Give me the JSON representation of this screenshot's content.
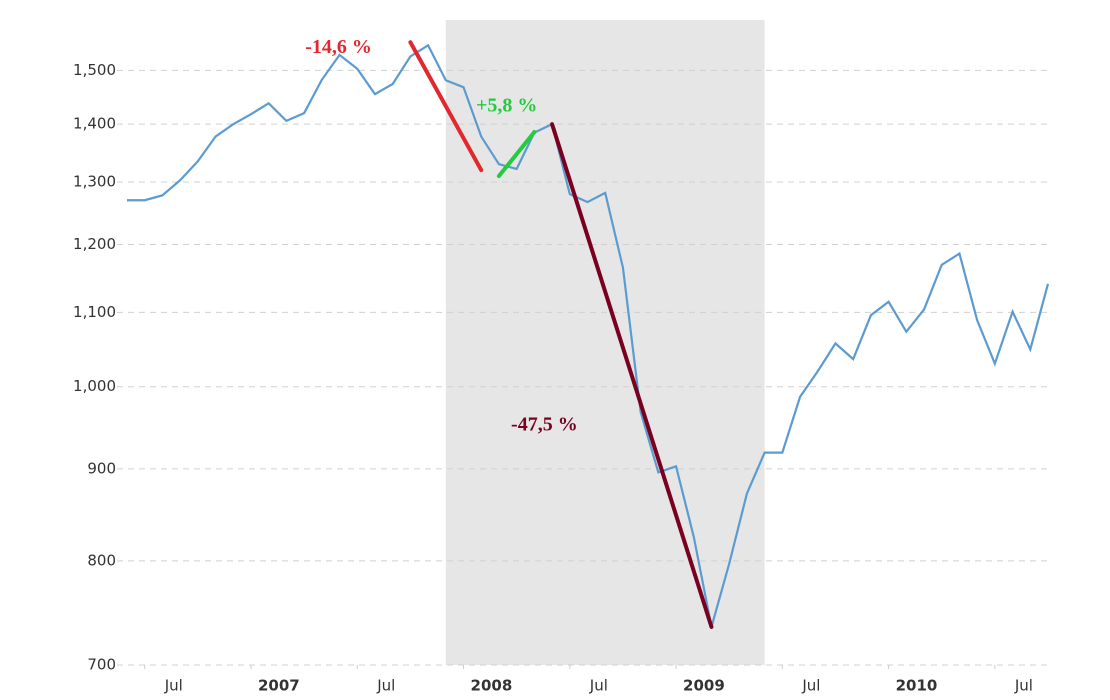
{
  "chart_data": {
    "type": "line",
    "x": [
      "2006-06",
      "2006-07",
      "2006-08",
      "2006-09",
      "2006-10",
      "2006-11",
      "2006-12",
      "2007-01",
      "2007-02",
      "2007-03",
      "2007-04",
      "2007-05",
      "2007-06",
      "2007-07",
      "2007-08",
      "2007-09",
      "2007-10",
      "2007-11",
      "2007-12",
      "2008-01",
      "2008-02",
      "2008-03",
      "2008-04",
      "2008-05",
      "2008-06",
      "2008-07",
      "2008-08",
      "2008-09",
      "2008-10",
      "2008-11",
      "2008-12",
      "2009-01",
      "2009-02",
      "2009-03",
      "2009-04",
      "2009-05",
      "2009-06",
      "2009-07",
      "2009-08",
      "2009-09",
      "2009-10",
      "2009-11",
      "2009-12",
      "2010-01",
      "2010-02",
      "2010-03",
      "2010-04",
      "2010-05",
      "2010-06",
      "2010-07",
      "2010-08",
      "2010-09",
      "2010-10"
    ],
    "values": [
      1270,
      1270,
      1278,
      1303,
      1335,
      1378,
      1400,
      1418,
      1438,
      1406,
      1420,
      1482,
      1530,
      1503,
      1455,
      1474,
      1527,
      1549,
      1481,
      1468,
      1378,
      1330,
      1322,
      1385,
      1400,
      1280,
      1267,
      1282,
      1165,
      968,
      896,
      903,
      825,
      735,
      797,
      872,
      919,
      919,
      987,
      1020,
      1057,
      1036,
      1096,
      1115,
      1073,
      1104,
      1169,
      1186,
      1089,
      1030,
      1101,
      1049,
      1141
    ],
    "color": "#5b9bd0",
    "log_scale": true,
    "grid": true,
    "ylim": [
      700,
      1600
    ],
    "yticks": [
      700,
      800,
      900,
      {
        "value": 1000,
        "label": "1,000"
      },
      {
        "value": 1100,
        "label": "1,100"
      },
      {
        "value": 1200,
        "label": "1,200"
      },
      {
        "value": 1300,
        "label": "1,300"
      },
      {
        "value": 1400,
        "label": "1,400"
      },
      {
        "value": 1500,
        "label": "1,500"
      }
    ],
    "xticks": [
      {
        "value": "2006-07",
        "label": "Jul"
      },
      {
        "value": "2007-01",
        "label": "2007"
      },
      {
        "value": "2007-07",
        "label": "Jul"
      },
      {
        "value": "2008-01",
        "label": "2008"
      },
      {
        "value": "2008-07",
        "label": "Jul"
      },
      {
        "value": "2009-01",
        "label": "2009"
      },
      {
        "value": "2009-07",
        "label": "Jul"
      },
      {
        "value": "2010-01",
        "label": "2010"
      },
      {
        "value": "2010-07",
        "label": "Jul"
      }
    ],
    "shaded_ranges": [
      [
        "2007-12",
        "2009-06"
      ]
    ],
    "shade_color": "#e6e6e6",
    "annotations": [
      {
        "label": "-14,6 %",
        "color": "#e0282d",
        "x": [
          "2007-10",
          "2008-02"
        ],
        "y": [
          1555,
          1320
        ]
      },
      {
        "label": "+5,8 %",
        "color": "#22cc3c",
        "x": [
          "2008-03",
          "2008-05"
        ],
        "y": [
          1310,
          1386
        ]
      },
      {
        "label": "-47,5 %",
        "color": "#7a0020",
        "x": [
          "2008-06",
          "2009-03"
        ],
        "y": [
          1400,
          735
        ]
      }
    ]
  }
}
